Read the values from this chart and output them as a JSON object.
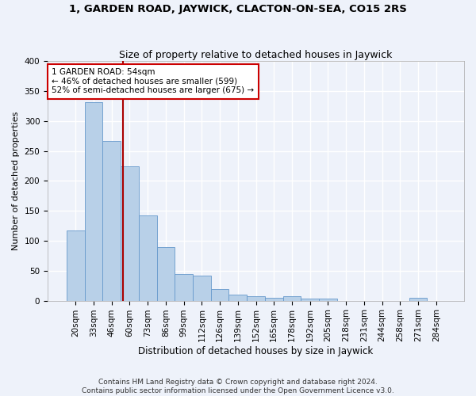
{
  "title": "1, GARDEN ROAD, JAYWICK, CLACTON-ON-SEA, CO15 2RS",
  "subtitle": "Size of property relative to detached houses in Jaywick",
  "xlabel": "Distribution of detached houses by size in Jaywick",
  "ylabel": "Number of detached properties",
  "categories": [
    "20sqm",
    "33sqm",
    "46sqm",
    "60sqm",
    "73sqm",
    "86sqm",
    "99sqm",
    "112sqm",
    "126sqm",
    "139sqm",
    "152sqm",
    "165sqm",
    "178sqm",
    "192sqm",
    "205sqm",
    "218sqm",
    "231sqm",
    "244sqm",
    "258sqm",
    "271sqm",
    "284sqm"
  ],
  "values": [
    117,
    331,
    267,
    224,
    142,
    90,
    45,
    42,
    19,
    10,
    7,
    5,
    7,
    4,
    3,
    0,
    0,
    0,
    0,
    5,
    0
  ],
  "bar_color": "#b8d0e8",
  "bar_edge_color": "#6699cc",
  "bar_width": 1.0,
  "property_line_x": 2.62,
  "annotation_text": "1 GARDEN ROAD: 54sqm\n← 46% of detached houses are smaller (599)\n52% of semi-detached houses are larger (675) →",
  "annotation_box_color": "#ffffff",
  "annotation_box_edge": "#cc0000",
  "property_line_color": "#aa0000",
  "ylim": [
    0,
    400
  ],
  "yticks": [
    0,
    50,
    100,
    150,
    200,
    250,
    300,
    350,
    400
  ],
  "background_color": "#eef2fa",
  "grid_color": "#ffffff",
  "footer": "Contains HM Land Registry data © Crown copyright and database right 2024.\nContains public sector information licensed under the Open Government Licence v3.0.",
  "title_fontsize": 9.5,
  "subtitle_fontsize": 9,
  "xlabel_fontsize": 8.5,
  "ylabel_fontsize": 8,
  "tick_fontsize": 7.5,
  "footer_fontsize": 6.5,
  "annotation_fontsize": 7.5
}
